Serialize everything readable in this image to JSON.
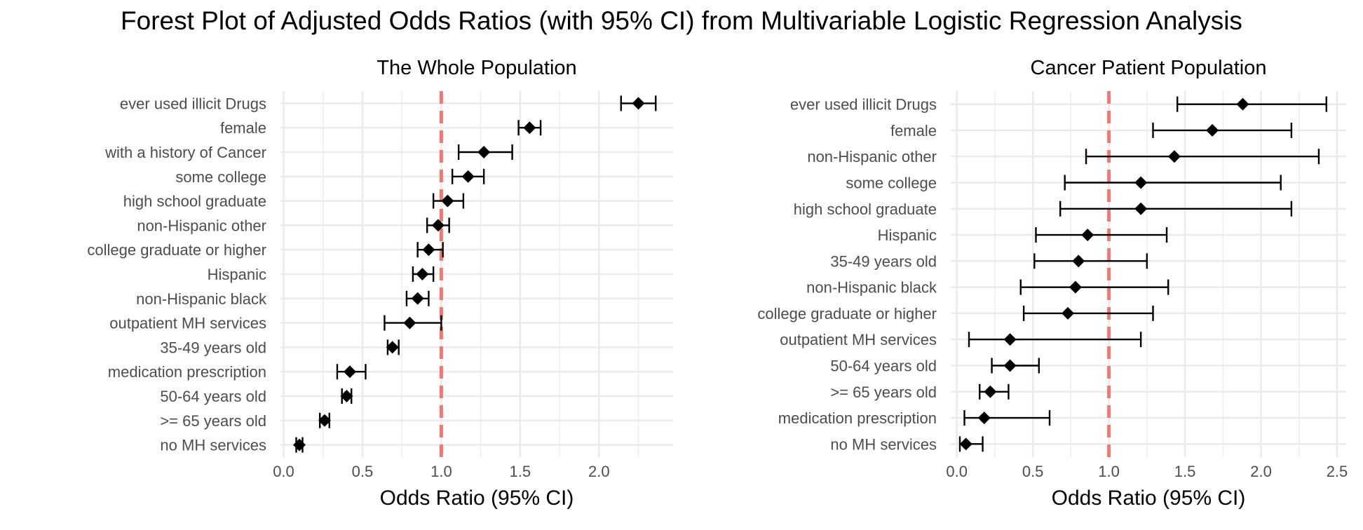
{
  "title": "Forest Plot of Adjusted Odds Ratios (with 95% CI) from Multivariable Logistic Regression Analysis",
  "colors": {
    "reference_line": "#F8766D",
    "point": "#000000",
    "grid": "#ebebeb",
    "tick_text": "#4d4d4d"
  },
  "chart_data": [
    {
      "type": "scatter",
      "subtype": "forest",
      "title": "The Whole Population",
      "xlabel": "Odds Ratio (95% CI)",
      "ylabel": "",
      "xlim": [
        -0.02,
        2.47
      ],
      "xticks": [
        0.0,
        0.5,
        1.0,
        1.5,
        2.0
      ],
      "xtick_labels": [
        "0.0",
        "0.5",
        "1.0",
        "1.5",
        "2.0"
      ],
      "reference_x": 1.0,
      "grid": true,
      "categories": [
        "ever used illicit Drugs",
        "female",
        "with a history of Cancer",
        "some college",
        "high school graduate",
        "non-Hispanic other",
        "college graduate or higher",
        "Hispanic",
        "non-Hispanic black",
        "outpatient MH services",
        "35-49 years old",
        "medication prescription",
        "50-64 years old",
        ">= 65 years old",
        "no MH services"
      ],
      "or": [
        2.25,
        1.56,
        1.27,
        1.17,
        1.04,
        0.98,
        0.92,
        0.88,
        0.85,
        0.8,
        0.69,
        0.42,
        0.4,
        0.26,
        0.1
      ],
      "lower": [
        2.14,
        1.49,
        1.11,
        1.07,
        0.95,
        0.91,
        0.85,
        0.82,
        0.78,
        0.64,
        0.66,
        0.34,
        0.37,
        0.23,
        0.08
      ],
      "upper": [
        2.36,
        1.63,
        1.45,
        1.27,
        1.14,
        1.05,
        1.01,
        0.95,
        0.92,
        1.0,
        0.73,
        0.52,
        0.43,
        0.29,
        0.12
      ]
    },
    {
      "type": "scatter",
      "subtype": "forest",
      "title": "Cancer Patient Population",
      "xlabel": "Odds Ratio (95% CI)",
      "ylabel": "",
      "xlim": [
        -0.04,
        2.56
      ],
      "xticks": [
        0.0,
        0.5,
        1.0,
        1.5,
        2.0,
        2.5
      ],
      "xtick_labels": [
        "0.0",
        "0.5",
        "1.0",
        "1.5",
        "2.0",
        "2.5"
      ],
      "reference_x": 1.0,
      "grid": true,
      "categories": [
        "ever used illicit Drugs",
        "female",
        "non-Hispanic other",
        "some college",
        "high school graduate",
        "Hispanic",
        "35-49 years old",
        "non-Hispanic black",
        "college graduate or higher",
        "outpatient MH services",
        "50-64 years old",
        ">= 65 years old",
        "medication prescription",
        "no MH services"
      ],
      "or": [
        1.88,
        1.68,
        1.43,
        1.21,
        1.21,
        0.86,
        0.8,
        0.78,
        0.73,
        0.35,
        0.35,
        0.22,
        0.18,
        0.06
      ],
      "lower": [
        1.45,
        1.29,
        0.85,
        0.71,
        0.68,
        0.52,
        0.51,
        0.42,
        0.44,
        0.08,
        0.23,
        0.15,
        0.05,
        0.02
      ],
      "upper": [
        2.43,
        2.2,
        2.38,
        2.13,
        2.2,
        1.38,
        1.25,
        1.39,
        1.29,
        1.21,
        0.54,
        0.34,
        0.61,
        0.17
      ]
    }
  ]
}
